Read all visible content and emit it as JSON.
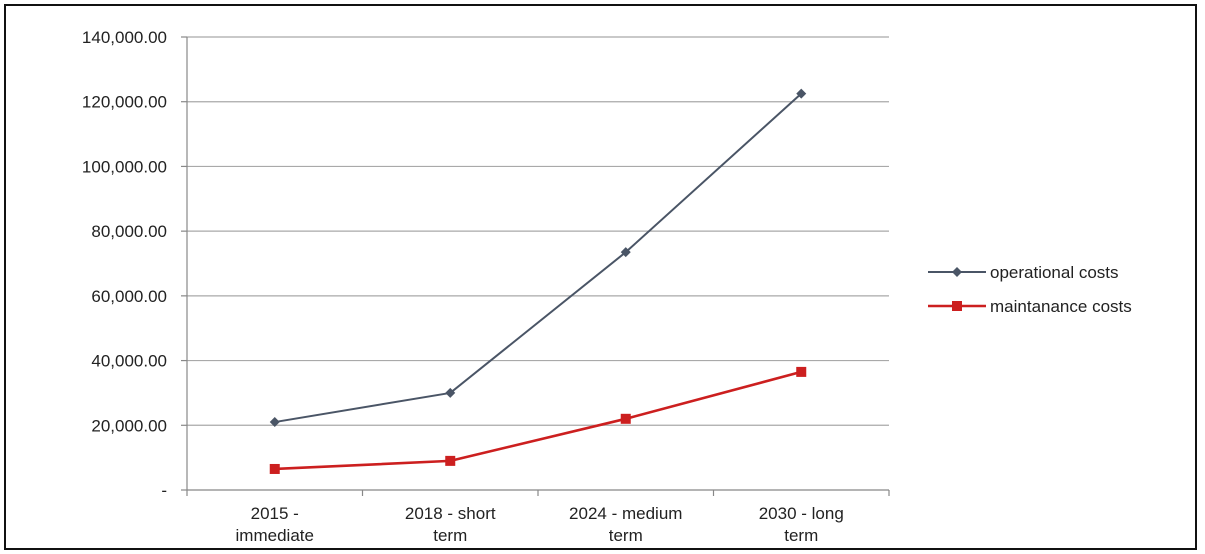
{
  "chart_data": {
    "type": "line",
    "title": "",
    "xlabel": "",
    "ylabel": "",
    "categories": [
      [
        "2015 -",
        "immediate"
      ],
      [
        "2018 - short",
        "term"
      ],
      [
        "2024 - medium",
        "term"
      ],
      [
        "2030 - long",
        "term"
      ]
    ],
    "y_tick_labels": [
      "-",
      "20,000.00",
      "40,000.00",
      "60,000.00",
      "80,000.00",
      "100,000.00",
      "120,000.00",
      "140,000.00"
    ],
    "ylim": [
      0,
      140000
    ],
    "y_step": 20000,
    "grid": "horizontal",
    "legend_position": "right",
    "series": [
      {
        "name": "operational costs",
        "color": "#4a5566",
        "marker": "diamond",
        "values": [
          21000,
          30000,
          73500,
          122500
        ]
      },
      {
        "name": "maintanance costs",
        "color": "#cc1f1f",
        "marker": "square",
        "values": [
          6500,
          9000,
          22000,
          36500
        ]
      }
    ]
  }
}
